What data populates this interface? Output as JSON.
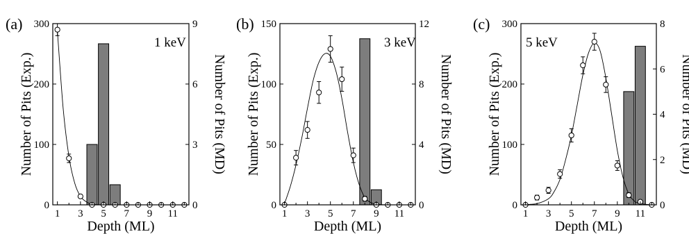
{
  "chart_data": [
    {
      "type": "bar",
      "panel_label": "(a)",
      "annotation": "1 keV",
      "xlabel": "Depth (ML)",
      "ylabel_left": "Number of Pits (Exp.)",
      "ylabel_right": "Number of Pits (MD)",
      "xlim": [
        0.6,
        12.4
      ],
      "ylim_left": [
        0,
        300
      ],
      "ylim_right": [
        0,
        9
      ],
      "x_ticks": [
        1,
        3,
        5,
        7,
        9,
        11
      ],
      "y_ticks_left": [
        0,
        100,
        200,
        300
      ],
      "y_ticks_right": [
        0,
        3,
        6,
        9
      ],
      "series": [
        {
          "axis": "left",
          "kind": "scatter_errorbar",
          "x": [
            1,
            2,
            3,
            4,
            5,
            6,
            7,
            8,
            9,
            10,
            11,
            12
          ],
          "y": [
            290,
            77,
            14,
            0,
            0,
            0,
            0,
            0,
            0,
            0,
            0,
            0
          ],
          "err": [
            10,
            7,
            2,
            0,
            0,
            0,
            0,
            0,
            0,
            0,
            0,
            0
          ]
        },
        {
          "axis": "left",
          "kind": "fit_curve",
          "x": [
            1,
            1.5,
            2,
            2.5,
            3,
            3.5,
            4,
            4.5,
            5,
            5.5,
            6,
            6.5,
            7,
            8,
            9,
            10,
            11,
            12
          ],
          "y": [
            288,
            160,
            80,
            36,
            14,
            5,
            1,
            0.3,
            0,
            0,
            0,
            0,
            0,
            0,
            0,
            0,
            0,
            0
          ]
        },
        {
          "axis": "right",
          "kind": "bar",
          "x": [
            4,
            5,
            6
          ],
          "values": [
            3,
            8,
            1
          ]
        }
      ]
    },
    {
      "type": "bar",
      "panel_label": "(b)",
      "annotation": "3 keV",
      "xlabel": "Depth (ML)",
      "ylabel_left": "Number of Pits (Exp.)",
      "ylabel_right": "Number of Pits (MD)",
      "xlim": [
        0.6,
        12.4
      ],
      "ylim_left": [
        0,
        150
      ],
      "ylim_right": [
        0,
        12
      ],
      "x_ticks": [
        1,
        3,
        5,
        7,
        9,
        11
      ],
      "y_ticks_left": [
        0,
        50,
        100,
        150
      ],
      "y_ticks_right": [
        0,
        4,
        8,
        12
      ],
      "series": [
        {
          "axis": "left",
          "kind": "scatter_errorbar",
          "x": [
            1,
            2,
            3,
            4,
            5,
            6,
            7,
            8,
            9,
            10,
            11,
            12
          ],
          "y": [
            0,
            39,
            62,
            93,
            129,
            104,
            41,
            5,
            0,
            0,
            0,
            0
          ],
          "err": [
            0,
            6,
            7,
            9,
            11,
            10,
            6,
            2,
            0,
            0,
            0,
            0
          ]
        },
        {
          "axis": "left",
          "kind": "fit_curve",
          "x": [
            1,
            1.5,
            2,
            2.5,
            3,
            3.5,
            4,
            4.5,
            5,
            5.5,
            6,
            6.5,
            7,
            7.5,
            8,
            8.5,
            9,
            10,
            11,
            12
          ],
          "y": [
            1,
            15,
            33,
            55,
            80,
            103,
            118,
            125,
            123,
            110,
            88,
            60,
            35,
            17,
            6,
            2,
            0.5,
            0,
            0,
            0
          ]
        },
        {
          "axis": "right",
          "kind": "bar",
          "x": [
            8,
            9
          ],
          "values": [
            11,
            1
          ]
        }
      ]
    },
    {
      "type": "bar",
      "panel_label": "(c)",
      "annotation": "5 keV",
      "xlabel": "Depth (ML)",
      "ylabel_left": "Number of Pits (Exp.)",
      "ylabel_right": "Number of Pits (MD)",
      "xlim": [
        0.6,
        12.4
      ],
      "ylim_left": [
        0,
        300
      ],
      "ylim_right": [
        0,
        8
      ],
      "x_ticks": [
        1,
        3,
        5,
        7,
        9,
        11
      ],
      "y_ticks_left": [
        0,
        100,
        200,
        300
      ],
      "y_ticks_right": [
        0,
        2,
        4,
        6,
        8
      ],
      "series": [
        {
          "axis": "left",
          "kind": "scatter_errorbar",
          "x": [
            1,
            2,
            3,
            4,
            5,
            6,
            7,
            8,
            9,
            10,
            11,
            12
          ],
          "y": [
            0,
            12,
            24,
            51,
            115,
            231,
            270,
            199,
            65,
            16,
            5,
            0
          ],
          "err": [
            0,
            4,
            5,
            7,
            11,
            14,
            14,
            13,
            8,
            4,
            0,
            0
          ]
        },
        {
          "axis": "left",
          "kind": "fit_curve",
          "x": [
            1,
            2,
            3,
            3.5,
            4,
            4.5,
            5,
            5.5,
            6,
            6.5,
            7,
            7.5,
            8,
            8.5,
            9,
            9.5,
            10,
            10.5,
            11,
            12
          ],
          "y": [
            0.5,
            2,
            10,
            22,
            42,
            75,
            115,
            165,
            215,
            252,
            268,
            255,
            210,
            150,
            90,
            45,
            18,
            6,
            2,
            0
          ]
        },
        {
          "axis": "right",
          "kind": "bar",
          "x": [
            10,
            11
          ],
          "values": [
            5,
            7
          ]
        }
      ]
    }
  ]
}
